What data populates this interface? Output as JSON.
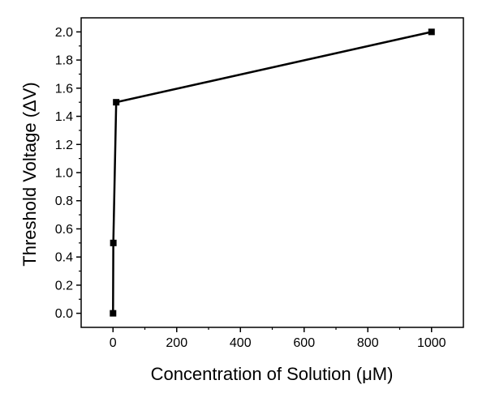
{
  "chart_data": {
    "type": "line",
    "title": "",
    "xlabel": "Concentration of Solution (μM)",
    "ylabel": "Threshold Voltage (ΔV)",
    "xlim": [
      -100,
      1100
    ],
    "ylim": [
      -0.1,
      2.1
    ],
    "x_ticks": [
      0,
      200,
      400,
      600,
      800,
      1000
    ],
    "y_ticks": [
      0.0,
      0.2,
      0.4,
      0.6,
      0.8,
      1.0,
      1.2,
      1.4,
      1.6,
      1.8,
      2.0
    ],
    "x_tick_labels": [
      "0",
      "200",
      "400",
      "600",
      "800",
      "1000"
    ],
    "y_tick_labels": [
      "0.0",
      "0.2",
      "0.4",
      "0.6",
      "0.8",
      "1.0",
      "1.2",
      "1.4",
      "1.6",
      "1.8",
      "2.0"
    ],
    "grid": false,
    "series": [
      {
        "color": "#000000",
        "marker": "square",
        "x": [
          0.1,
          1,
          10,
          1000
        ],
        "y": [
          0.0,
          0.5,
          1.5,
          2.0
        ]
      }
    ]
  }
}
